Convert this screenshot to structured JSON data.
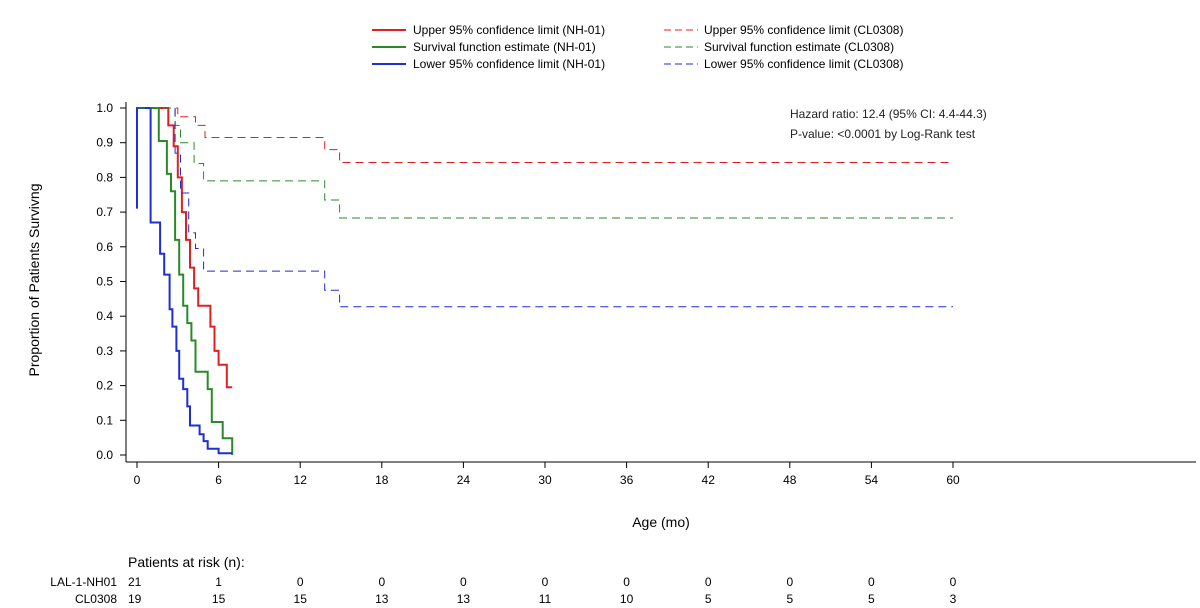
{
  "chart_data": {
    "type": "line",
    "title": "",
    "xlabel": "Age (mo)",
    "ylabel": "Proportion of Patients Survivng",
    "xlim": [
      0,
      60
    ],
    "ylim": [
      0,
      1
    ],
    "x_ticks": [
      0,
      6,
      12,
      18,
      24,
      30,
      36,
      42,
      48,
      54,
      60
    ],
    "y_ticks": [
      "0.0",
      "0.1",
      "0.2",
      "0.3",
      "0.4",
      "0.5",
      "0.6",
      "0.7",
      "0.8",
      "0.9",
      "1.0"
    ],
    "grid": false,
    "legend_position": "top",
    "legend": [
      "Upper 95% confidence limit (NH-01)",
      "Survival function estimate (NH-01)",
      "Lower 95% confidence limit (NH-01)",
      "Upper 95% confidence limit (CL0308)",
      "Survival function estimate (CL0308)",
      "Lower 95% confidence limit (CL0308)"
    ],
    "annotations": [
      "Hazard ratio: 12.4 (95% CI: 4.4-44.3)",
      "P-value: <0.0001 by Log-Rank test"
    ],
    "series": [
      {
        "color": "#e02020",
        "dash": false,
        "points": [
          [
            0,
            1.0
          ],
          [
            2.3,
            1.0
          ],
          [
            2.3,
            0.95
          ],
          [
            2.7,
            0.95
          ],
          [
            2.7,
            0.89
          ],
          [
            3.0,
            0.89
          ],
          [
            3.0,
            0.8
          ],
          [
            3.3,
            0.8
          ],
          [
            3.3,
            0.7
          ],
          [
            3.6,
            0.7
          ],
          [
            3.6,
            0.62
          ],
          [
            3.9,
            0.62
          ],
          [
            3.9,
            0.54
          ],
          [
            4.2,
            0.54
          ],
          [
            4.2,
            0.48
          ],
          [
            4.5,
            0.48
          ],
          [
            4.5,
            0.43
          ],
          [
            5.4,
            0.43
          ],
          [
            5.4,
            0.37
          ],
          [
            5.7,
            0.37
          ],
          [
            5.7,
            0.3
          ],
          [
            6.0,
            0.3
          ],
          [
            6.0,
            0.26
          ],
          [
            6.6,
            0.26
          ],
          [
            6.6,
            0.195
          ],
          [
            7.0,
            0.195
          ]
        ]
      },
      {
        "color": "#2a8a2a",
        "dash": false,
        "points": [
          [
            0,
            1.0
          ],
          [
            1.6,
            1.0
          ],
          [
            1.6,
            0.905
          ],
          [
            2.2,
            0.905
          ],
          [
            2.2,
            0.81
          ],
          [
            2.5,
            0.81
          ],
          [
            2.5,
            0.76
          ],
          [
            2.8,
            0.76
          ],
          [
            2.8,
            0.62
          ],
          [
            3.1,
            0.62
          ],
          [
            3.1,
            0.52
          ],
          [
            3.4,
            0.52
          ],
          [
            3.4,
            0.43
          ],
          [
            3.7,
            0.43
          ],
          [
            3.7,
            0.38
          ],
          [
            4.0,
            0.38
          ],
          [
            4.0,
            0.33
          ],
          [
            4.3,
            0.33
          ],
          [
            4.3,
            0.24
          ],
          [
            5.2,
            0.24
          ],
          [
            5.2,
            0.19
          ],
          [
            5.5,
            0.19
          ],
          [
            5.5,
            0.095
          ],
          [
            6.3,
            0.095
          ],
          [
            6.3,
            0.048
          ],
          [
            7.0,
            0.048
          ],
          [
            7.0,
            0.0
          ]
        ]
      },
      {
        "color": "#1f2fd6",
        "dash": false,
        "points": [
          [
            0,
            0.71
          ],
          [
            0,
            1.0
          ],
          [
            1.0,
            1.0
          ],
          [
            1.0,
            0.67
          ],
          [
            1.7,
            0.67
          ],
          [
            1.7,
            0.58
          ],
          [
            2.0,
            0.58
          ],
          [
            2.0,
            0.52
          ],
          [
            2.4,
            0.52
          ],
          [
            2.4,
            0.42
          ],
          [
            2.6,
            0.42
          ],
          [
            2.6,
            0.37
          ],
          [
            2.9,
            0.37
          ],
          [
            2.9,
            0.3
          ],
          [
            3.1,
            0.3
          ],
          [
            3.1,
            0.22
          ],
          [
            3.4,
            0.22
          ],
          [
            3.4,
            0.19
          ],
          [
            3.7,
            0.19
          ],
          [
            3.7,
            0.14
          ],
          [
            3.9,
            0.14
          ],
          [
            3.9,
            0.085
          ],
          [
            4.6,
            0.085
          ],
          [
            4.6,
            0.06
          ],
          [
            4.9,
            0.06
          ],
          [
            4.9,
            0.04
          ],
          [
            5.2,
            0.04
          ],
          [
            5.2,
            0.018
          ],
          [
            6.0,
            0.018
          ],
          [
            6.0,
            0.005
          ],
          [
            7.0,
            0.005
          ]
        ]
      },
      {
        "color": "#e02020",
        "dash": true,
        "points": [
          [
            0,
            1.0
          ],
          [
            3.0,
            1.0
          ],
          [
            3.0,
            0.975
          ],
          [
            4.3,
            0.975
          ],
          [
            4.3,
            0.95
          ],
          [
            5.0,
            0.95
          ],
          [
            5.0,
            0.915
          ],
          [
            13.8,
            0.915
          ],
          [
            13.8,
            0.88
          ],
          [
            14.9,
            0.88
          ],
          [
            14.9,
            0.843
          ],
          [
            60,
            0.843
          ]
        ]
      },
      {
        "color": "#2a8a2a",
        "dash": true,
        "points": [
          [
            0,
            1.0
          ],
          [
            2.8,
            1.0
          ],
          [
            2.8,
            0.95
          ],
          [
            3.2,
            0.95
          ],
          [
            3.2,
            0.9
          ],
          [
            4.2,
            0.9
          ],
          [
            4.2,
            0.84
          ],
          [
            4.9,
            0.84
          ],
          [
            4.9,
            0.79
          ],
          [
            13.8,
            0.79
          ],
          [
            13.8,
            0.735
          ],
          [
            14.9,
            0.735
          ],
          [
            14.9,
            0.683
          ],
          [
            60,
            0.683
          ]
        ]
      },
      {
        "color": "#1f2fd6",
        "dash": true,
        "points": [
          [
            2.8,
            1.0
          ],
          [
            2.8,
            0.87
          ],
          [
            3.2,
            0.87
          ],
          [
            3.2,
            0.755
          ],
          [
            3.8,
            0.755
          ],
          [
            3.8,
            0.64
          ],
          [
            4.3,
            0.64
          ],
          [
            4.3,
            0.595
          ],
          [
            4.9,
            0.595
          ],
          [
            4.9,
            0.53
          ],
          [
            13.8,
            0.53
          ],
          [
            13.8,
            0.475
          ],
          [
            14.9,
            0.475
          ],
          [
            14.9,
            0.427
          ],
          [
            60,
            0.427
          ]
        ]
      }
    ]
  },
  "risk_table": {
    "title": "Patients at risk (n):",
    "rows": [
      {
        "label": "LAL-1-NH01",
        "counts": [
          "21",
          "1",
          "0",
          "0",
          "0",
          "0",
          "0",
          "0",
          "0",
          "0",
          "0"
        ]
      },
      {
        "label": "CL0308",
        "counts": [
          "19",
          "15",
          "15",
          "13",
          "13",
          "11",
          "10",
          "5",
          "5",
          "5",
          "3"
        ]
      }
    ]
  }
}
